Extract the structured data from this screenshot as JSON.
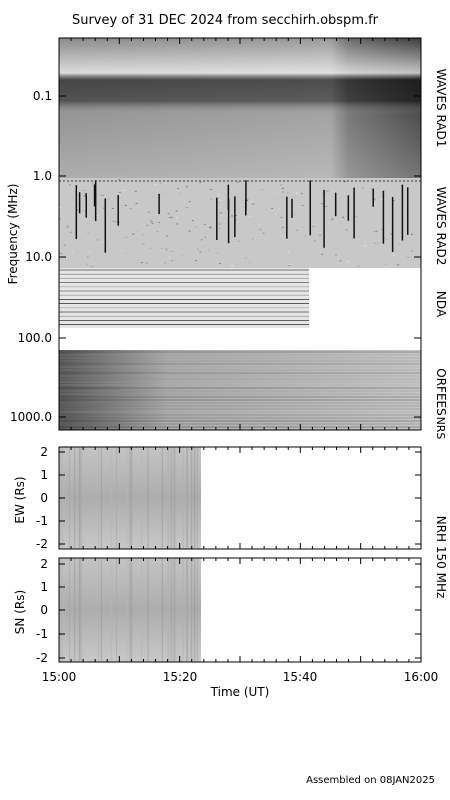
{
  "title": "Survey of 31 DEC 2024 from secchirh.obspm.fr",
  "footer": "Assembled on 08JAN2025",
  "chart_data": [
    {
      "type": "heatmap",
      "name": "dynamic-spectrum",
      "ylabel": "Frequency (MHz)",
      "yscale": "log",
      "yticks": [
        "0.1",
        "1.0",
        "10.0",
        "100.0",
        "1000.0"
      ],
      "instruments": [
        {
          "label": "WAVES RAD1",
          "freq_range_mhz": [
            0.02,
            1.0
          ]
        },
        {
          "label": "WAVES RAD2",
          "freq_range_mhz": [
            1.0,
            16.0
          ]
        },
        {
          "label": "NDA",
          "freq_range_mhz": [
            16.0,
            80.0
          ]
        },
        {
          "label": "ORFEES",
          "freq_range_mhz": [
            140.0,
            1000.0
          ]
        },
        {
          "label": "NRS",
          "freq_range_mhz": [
            1000.0,
            1500.0
          ]
        }
      ]
    },
    {
      "type": "heatmap",
      "name": "nrh-ew",
      "ylabel": "EW (Rs)",
      "yticks": [
        "2",
        "1",
        "0",
        "-1",
        "-2"
      ],
      "ylim": [
        -2.2,
        2.2
      ]
    },
    {
      "type": "heatmap",
      "name": "nrh-sn",
      "ylabel": "SN (Rs)",
      "yticks": [
        "2",
        "1",
        "0",
        "-1",
        "-2"
      ],
      "ylim": [
        -2.2,
        2.2
      ]
    }
  ],
  "nrh_label": "NRH 150 MHz",
  "xaxis": {
    "label": "Time (UT)",
    "range_utc": [
      "15:00",
      "16:00"
    ],
    "ticks": [
      "15:00",
      "15:20",
      "15:40",
      "16:00"
    ]
  }
}
